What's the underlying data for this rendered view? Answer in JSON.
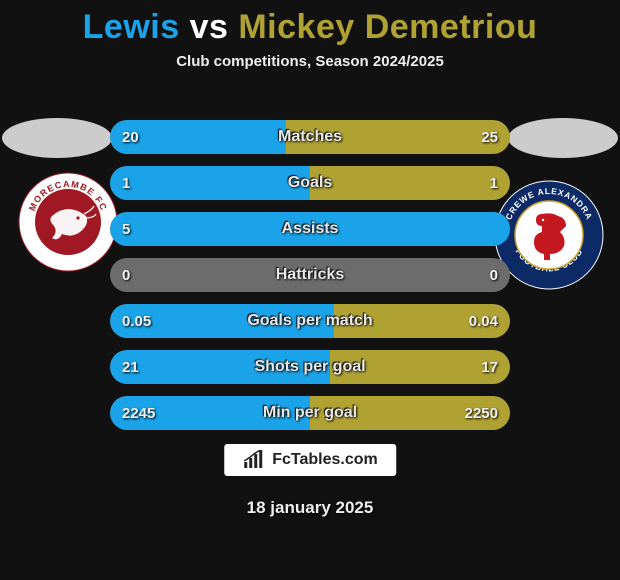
{
  "title": {
    "player1": "Lewis",
    "vs": "vs",
    "player2": "Mickey Demetriou"
  },
  "subtitle": "Club competitions, Season 2024/2025",
  "colors": {
    "player1": "#1aa3e8",
    "player2": "#b0a232",
    "bar_bg": "#6c6c6c",
    "page_bg": "#111111",
    "text": "#eeeeee"
  },
  "club_left": {
    "name": "Morecambe FC",
    "ring_color": "#ffffff",
    "inner_color": "#a01824",
    "ring_text_color": "#a01824"
  },
  "club_right": {
    "name": "Crewe Alexandra Football Club",
    "ring_color": "#0b2a66",
    "inner_color": "#ffffff",
    "lion_color": "#c41820",
    "ring_text_color": "#ffffff"
  },
  "stats": [
    {
      "label": "Matches",
      "left_val": "20",
      "right_val": "25",
      "left_pct": 44,
      "right_pct": 56
    },
    {
      "label": "Goals",
      "left_val": "1",
      "right_val": "1",
      "left_pct": 50,
      "right_pct": 50
    },
    {
      "label": "Assists",
      "left_val": "5",
      "right_val": "",
      "left_pct": 100,
      "right_pct": 0
    },
    {
      "label": "Hattricks",
      "left_val": "0",
      "right_val": "0",
      "left_pct": 0,
      "right_pct": 0
    },
    {
      "label": "Goals per match",
      "left_val": "0.05",
      "right_val": "0.04",
      "left_pct": 56,
      "right_pct": 44
    },
    {
      "label": "Shots per goal",
      "left_val": "21",
      "right_val": "17",
      "left_pct": 55,
      "right_pct": 45
    },
    {
      "label": "Min per goal",
      "left_val": "2245",
      "right_val": "2250",
      "left_pct": 50,
      "right_pct": 50
    }
  ],
  "footer_site": "FcTables.com",
  "date": "18 january 2025",
  "bar_style": {
    "height": 34,
    "gap": 12,
    "radius": 17,
    "font_size": 16
  }
}
